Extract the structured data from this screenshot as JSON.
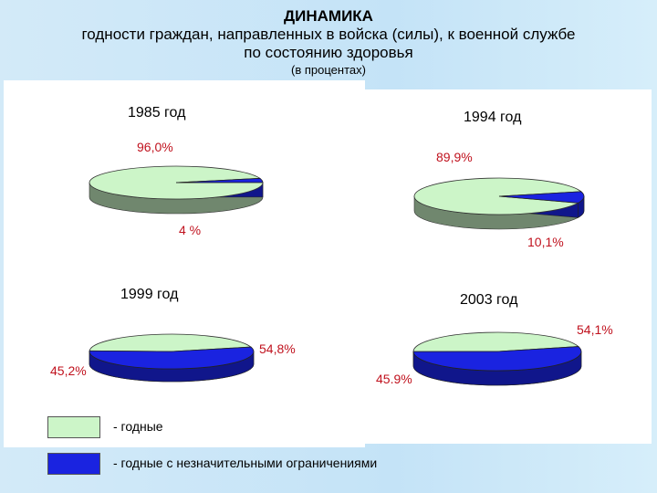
{
  "title": {
    "line1": "ДИНАМИКА",
    "line2": "годности граждан, направленных в войска (силы), к военной службе",
    "line3": "по состоянию здоровья",
    "line4": "(в процентах)"
  },
  "colors": {
    "fit": "#ccf5c8",
    "fit_side": "#6e8a6e",
    "limited": "#1a23e0",
    "limited_side": "#0f1699",
    "label": "#c0121e",
    "background": "#cbe7f8"
  },
  "legend": {
    "fit": "- годные",
    "limited": "- годные с незначительными ограничениями"
  },
  "chart_data": [
    {
      "type": "pie",
      "title": "1985 год",
      "categories": [
        "годные",
        "годные с незначительными ограничениями"
      ],
      "values": [
        96.0,
        4.0
      ],
      "labels": [
        "96,0%",
        "4 %"
      ]
    },
    {
      "type": "pie",
      "title": "1994 год",
      "categories": [
        "годные",
        "годные с незначительными ограничениями"
      ],
      "values": [
        89.9,
        10.1
      ],
      "labels": [
        "89,9%",
        "10,1%"
      ]
    },
    {
      "type": "pie",
      "title": "1999 год",
      "categories": [
        "годные",
        "годные с незначительными ограничениями"
      ],
      "values": [
        45.2,
        54.8
      ],
      "labels": [
        "45,2%",
        "54,8%"
      ]
    },
    {
      "type": "pie",
      "title": "2003 год",
      "categories": [
        "годные",
        "годные с незначительными ограничениями"
      ],
      "values": [
        45.9,
        54.1
      ],
      "labels": [
        "45.9%",
        "54,1%"
      ]
    }
  ]
}
